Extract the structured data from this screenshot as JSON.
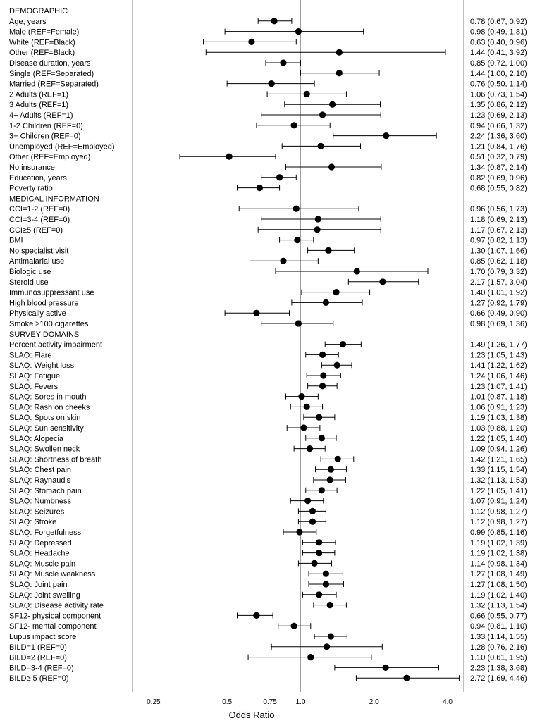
{
  "chart_data": {
    "type": "scatter",
    "subtype": "forest-plot",
    "xlabel": "Odds Ratio",
    "xscale": "log2",
    "xlim": [
      0.205,
      4.66
    ],
    "xticks": [
      0.25,
      0.5,
      0.75,
      1.0,
      2.0,
      4.0
    ],
    "xtick_labels": [
      "0.25",
      "0.5",
      "0.75",
      "1.0",
      "2.0",
      "4.0"
    ],
    "reference_line": 1.0,
    "rows": [
      {
        "label": "DEMOGRAPHIC",
        "header": true
      },
      {
        "label": "Age, years",
        "or": 0.78,
        "lo": 0.67,
        "hi": 0.92,
        "ci_text": "0.78 (0.67, 0.92)"
      },
      {
        "label": "Male (REF=Female)",
        "or": 0.98,
        "lo": 0.49,
        "hi": 1.81,
        "ci_text": "0.98 (0.49, 1.81)"
      },
      {
        "label": "White (REF=Black)",
        "or": 0.63,
        "lo": 0.4,
        "hi": 0.96,
        "ci_text": "0.63 (0.40, 0.96)"
      },
      {
        "label": "Other  (REF=Black)",
        "or": 1.44,
        "lo": 0.41,
        "hi": 3.92,
        "ci_text": "1.44 (0.41, 3.92)"
      },
      {
        "label": "Disease duration, years",
        "or": 0.85,
        "lo": 0.72,
        "hi": 1.0,
        "ci_text": "0.85 (0.72, 1.00)"
      },
      {
        "label": "Single (REF=Separated)",
        "or": 1.44,
        "lo": 1.0,
        "hi": 2.1,
        "ci_text": "1.44 (1.00, 2.10)"
      },
      {
        "label": "Married (REF=Separated)",
        "or": 0.76,
        "lo": 0.5,
        "hi": 1.14,
        "ci_text": "0.76 (0.50, 1.14)"
      },
      {
        "label": "2 Adults (REF=1)",
        "or": 1.06,
        "lo": 0.73,
        "hi": 1.54,
        "ci_text": "1.06 (0.73, 1.54)"
      },
      {
        "label": "3 Adults (REF=1)",
        "or": 1.35,
        "lo": 0.86,
        "hi": 2.12,
        "ci_text": "1.35 (0.86, 2.12)"
      },
      {
        "label": "4+ Adults (REF=1)",
        "or": 1.23,
        "lo": 0.69,
        "hi": 2.13,
        "ci_text": "1.23 (0.69, 2.13)"
      },
      {
        "label": "1-2 Children (REF=0)",
        "or": 0.94,
        "lo": 0.66,
        "hi": 1.32,
        "ci_text": "0.94 (0.66, 1.32)"
      },
      {
        "label": "3+ Children (REF=0)",
        "or": 2.24,
        "lo": 1.36,
        "hi": 3.6,
        "ci_text": "2.24 (1.36, 3.60)"
      },
      {
        "label": "Unemployed (REF=Employed)",
        "or": 1.21,
        "lo": 0.84,
        "hi": 1.76,
        "ci_text": "1.21 (0.84, 1.76)"
      },
      {
        "label": "Other (REF=Employed)",
        "or": 0.51,
        "lo": 0.32,
        "hi": 0.79,
        "ci_text": "0.51 (0.32, 0.79)"
      },
      {
        "label": "No insurance",
        "or": 1.34,
        "lo": 0.87,
        "hi": 2.14,
        "ci_text": "1.34 (0.87, 2.14)"
      },
      {
        "label": "Education, years",
        "or": 0.82,
        "lo": 0.69,
        "hi": 0.96,
        "ci_text": "0.82 (0.69, 0.96)"
      },
      {
        "label": "Poverty ratio",
        "or": 0.68,
        "lo": 0.55,
        "hi": 0.82,
        "ci_text": "0.68 (0.55, 0.82)"
      },
      {
        "label": "MEDICAL INFORMATION",
        "header": true
      },
      {
        "label": "CCI=1-2 (REF=0)",
        "or": 0.96,
        "lo": 0.56,
        "hi": 1.73,
        "ci_text": "0.96 (0.56, 1.73)"
      },
      {
        "label": "CCI=3-4 (REF=0)",
        "or": 1.18,
        "lo": 0.69,
        "hi": 2.13,
        "ci_text": "1.18 (0.69, 2.13)"
      },
      {
        "label": "CCI≥5 (REF=0)",
        "or": 1.17,
        "lo": 0.67,
        "hi": 2.13,
        "ci_text": "1.17 (0.67, 2.13)"
      },
      {
        "label": "BMI",
        "or": 0.97,
        "lo": 0.82,
        "hi": 1.13,
        "ci_text": "0.97 (0.82, 1.13)"
      },
      {
        "label": "No specialist visit",
        "or": 1.3,
        "lo": 1.07,
        "hi": 1.66,
        "ci_text": "1.30 (1.07, 1.66)"
      },
      {
        "label": "Antimalarial use",
        "or": 0.85,
        "lo": 0.62,
        "hi": 1.18,
        "ci_text": "0.85 (0.62, 1.18)"
      },
      {
        "label": "Biologic use",
        "or": 1.7,
        "lo": 0.79,
        "hi": 3.32,
        "ci_text": "1.70 (0.79, 3.32)"
      },
      {
        "label": "Steroid use",
        "or": 2.17,
        "lo": 1.57,
        "hi": 3.04,
        "ci_text": "2.17 (1.57, 3.04)"
      },
      {
        "label": "Immunosuppressant use",
        "or": 1.4,
        "lo": 1.01,
        "hi": 1.92,
        "ci_text": "1.40 (1.01, 1.92)"
      },
      {
        "label": "High blood pressure",
        "or": 1.27,
        "lo": 0.92,
        "hi": 1.79,
        "ci_text": "1.27 (0.92, 1.79)"
      },
      {
        "label": "Physically active",
        "or": 0.66,
        "lo": 0.49,
        "hi": 0.9,
        "ci_text": "0.66 (0.49, 0.90)"
      },
      {
        "label": "Smoke ≥100 cigarettes",
        "or": 0.98,
        "lo": 0.69,
        "hi": 1.36,
        "ci_text": "0.98 (0.69, 1.36)"
      },
      {
        "label": "SURVEY DOMAINS",
        "header": true
      },
      {
        "label": "Percent activity impairment",
        "or": 1.49,
        "lo": 1.26,
        "hi": 1.77,
        "ci_text": "1.49 (1.26, 1.77)"
      },
      {
        "label": "SLAQ: Flare",
        "or": 1.23,
        "lo": 1.05,
        "hi": 1.43,
        "ci_text": "1.23 (1.05, 1.43)"
      },
      {
        "label": "SLAQ: Weight loss",
        "or": 1.41,
        "lo": 1.22,
        "hi": 1.62,
        "ci_text": "1.41 (1.22, 1.62)"
      },
      {
        "label": "SLAQ: Fatigue",
        "or": 1.24,
        "lo": 1.06,
        "hi": 1.46,
        "ci_text": "1.24 (1.06, 1.46)"
      },
      {
        "label": "SLAQ: Fevers",
        "or": 1.23,
        "lo": 1.07,
        "hi": 1.41,
        "ci_text": "1.23 (1.07, 1.41)"
      },
      {
        "label": "SLAQ: Sores in mouth",
        "or": 1.01,
        "lo": 0.87,
        "hi": 1.18,
        "ci_text": "1.01 (0.87, 1.18)"
      },
      {
        "label": "SLAQ: Rash on cheeks",
        "or": 1.06,
        "lo": 0.91,
        "hi": 1.23,
        "ci_text": "1.06 (0.91, 1.23)"
      },
      {
        "label": "SLAQ: Spots on skin",
        "or": 1.19,
        "lo": 1.03,
        "hi": 1.38,
        "ci_text": "1.19 (1.03, 1.38)"
      },
      {
        "label": "SLAQ: Sun sensitivity",
        "or": 1.03,
        "lo": 0.88,
        "hi": 1.2,
        "ci_text": "1.03 (0.88, 1.20)"
      },
      {
        "label": "SLAQ: Alopecia",
        "or": 1.22,
        "lo": 1.05,
        "hi": 1.4,
        "ci_text": "1.22 (1.05, 1.40)"
      },
      {
        "label": "SLAQ: Swollen neck",
        "or": 1.09,
        "lo": 0.94,
        "hi": 1.26,
        "ci_text": "1.09 (0.94, 1.26)"
      },
      {
        "label": "SLAQ: Shortness of breath",
        "or": 1.42,
        "lo": 1.21,
        "hi": 1.65,
        "ci_text": "1.42 (1.21, 1.65)"
      },
      {
        "label": "SLAQ: Chest pain",
        "or": 1.33,
        "lo": 1.15,
        "hi": 1.54,
        "ci_text": "1.33 (1.15, 1.54)"
      },
      {
        "label": "SLAQ: Raynaud's",
        "or": 1.32,
        "lo": 1.13,
        "hi": 1.53,
        "ci_text": "1.32 (1.13, 1.53)"
      },
      {
        "label": "SLAQ: Stomach pain",
        "or": 1.22,
        "lo": 1.05,
        "hi": 1.41,
        "ci_text": "1.22 (1.05, 1.41)"
      },
      {
        "label": "SLAQ: Numbness",
        "or": 1.07,
        "lo": 0.91,
        "hi": 1.24,
        "ci_text": "1.07 (0.91, 1.24)"
      },
      {
        "label": "SLAQ: Seizures",
        "or": 1.12,
        "lo": 0.98,
        "hi": 1.27,
        "ci_text": "1.12 (0.98, 1.27)"
      },
      {
        "label": "SLAQ: Stroke",
        "or": 1.12,
        "lo": 0.98,
        "hi": 1.27,
        "ci_text": "1.12 (0.98, 1.27)"
      },
      {
        "label": "SLAQ: Forgetfulness",
        "or": 0.99,
        "lo": 0.85,
        "hi": 1.16,
        "ci_text": "0.99 (0.85, 1.16)"
      },
      {
        "label": "SLAQ: Depressed",
        "or": 1.19,
        "lo": 1.02,
        "hi": 1.39,
        "ci_text": "1.19 (1.02, 1.39)"
      },
      {
        "label": "SLAQ: Headache",
        "or": 1.19,
        "lo": 1.02,
        "hi": 1.38,
        "ci_text": "1.19 (1.02, 1.38)"
      },
      {
        "label": "SLAQ: Muscle pain",
        "or": 1.14,
        "lo": 0.98,
        "hi": 1.34,
        "ci_text": "1.14 (0.98, 1.34)"
      },
      {
        "label": "SLAQ: Muscle weakness",
        "or": 1.27,
        "lo": 1.08,
        "hi": 1.49,
        "ci_text": "1.27 (1.08, 1.49)"
      },
      {
        "label": "SLAQ: Joint pain",
        "or": 1.27,
        "lo": 1.08,
        "hi": 1.5,
        "ci_text": "1.27 (1.08, 1.50)"
      },
      {
        "label": "SLAQ: Joint swelling",
        "or": 1.19,
        "lo": 1.02,
        "hi": 1.4,
        "ci_text": "1.19 (1.02, 1.40)"
      },
      {
        "label": "SLAQ: Disease activity rate",
        "or": 1.32,
        "lo": 1.13,
        "hi": 1.54,
        "ci_text": "1.32 (1.13, 1.54)"
      },
      {
        "label": "SF12- physical component",
        "or": 0.66,
        "lo": 0.55,
        "hi": 0.77,
        "ci_text": "0.66 (0.55, 0.77)"
      },
      {
        "label": "SF12- mental component",
        "or": 0.94,
        "lo": 0.81,
        "hi": 1.1,
        "ci_text": "0.94 (0.81, 1.10)"
      },
      {
        "label": "Lupus impact score",
        "or": 1.33,
        "lo": 1.14,
        "hi": 1.55,
        "ci_text": "1.33 (1.14, 1.55)"
      },
      {
        "label": "BILD=1 (REF=0)",
        "or": 1.28,
        "lo": 0.76,
        "hi": 2.16,
        "ci_text": "1.28 (0.76, 2.16)"
      },
      {
        "label": "BILD=2 (REF=0)",
        "or": 1.1,
        "lo": 0.61,
        "hi": 1.95,
        "ci_text": "1.10 (0.61, 1.95)"
      },
      {
        "label": "BILD=3-4 (REF=0)",
        "or": 2.23,
        "lo": 1.38,
        "hi": 3.68,
        "ci_text": "2.23 (1.38, 3.68)"
      },
      {
        "label": "BILD≥ 5 (REF=0)",
        "or": 2.72,
        "lo": 1.69,
        "hi": 4.46,
        "ci_text": "2.72 (1.69, 4.46)"
      }
    ]
  }
}
